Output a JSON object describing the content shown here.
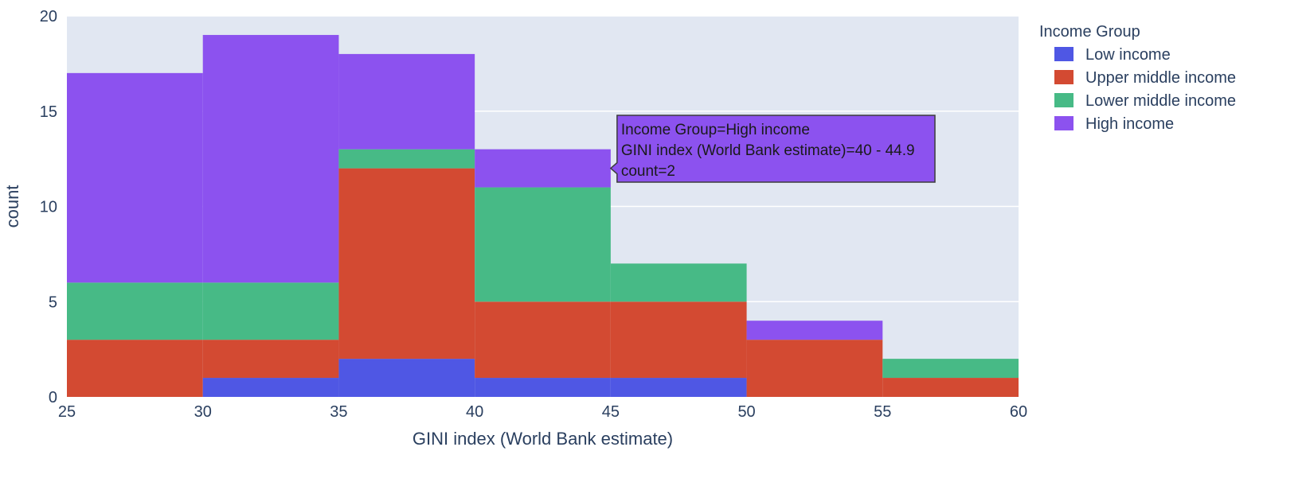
{
  "chart_data": {
    "type": "bar",
    "subtype": "stacked-histogram",
    "xlabel": "GINI index (World Bank estimate)",
    "ylabel": "count",
    "xlim": [
      25,
      60
    ],
    "ylim": [
      0,
      20
    ],
    "xticks": [
      25,
      30,
      35,
      40,
      45,
      50,
      55,
      60
    ],
    "yticks": [
      0,
      5,
      10,
      15,
      20
    ],
    "bins": [
      [
        25,
        30
      ],
      [
        30,
        35
      ],
      [
        35,
        40
      ],
      [
        40,
        45
      ],
      [
        45,
        50
      ],
      [
        50,
        55
      ],
      [
        55,
        60
      ]
    ],
    "grid": true,
    "legend": {
      "title": "Income Group",
      "position": "right"
    },
    "series": [
      {
        "name": "Low income",
        "color": "#4f57e4",
        "values": [
          0,
          1,
          2,
          1,
          1,
          0,
          0
        ]
      },
      {
        "name": "Upper middle income",
        "color": "#d34a32",
        "values": [
          3,
          2,
          10,
          4,
          4,
          3,
          1
        ]
      },
      {
        "name": "Lower middle income",
        "color": "#47ba86",
        "values": [
          3,
          3,
          1,
          6,
          2,
          0,
          1
        ]
      },
      {
        "name": "High income",
        "color": "#8c52ef",
        "values": [
          11,
          13,
          5,
          2,
          0,
          1,
          0
        ]
      }
    ],
    "tooltip": {
      "bin": 3,
      "series": 3,
      "lines": [
        "Income Group=High income",
        "GINI index (World Bank estimate)=40 - 44.9",
        "count=2"
      ]
    }
  },
  "colors": {
    "plot_bg": "#e1e7f2",
    "grid": "#ffffff",
    "text": "#2a3f5f"
  }
}
